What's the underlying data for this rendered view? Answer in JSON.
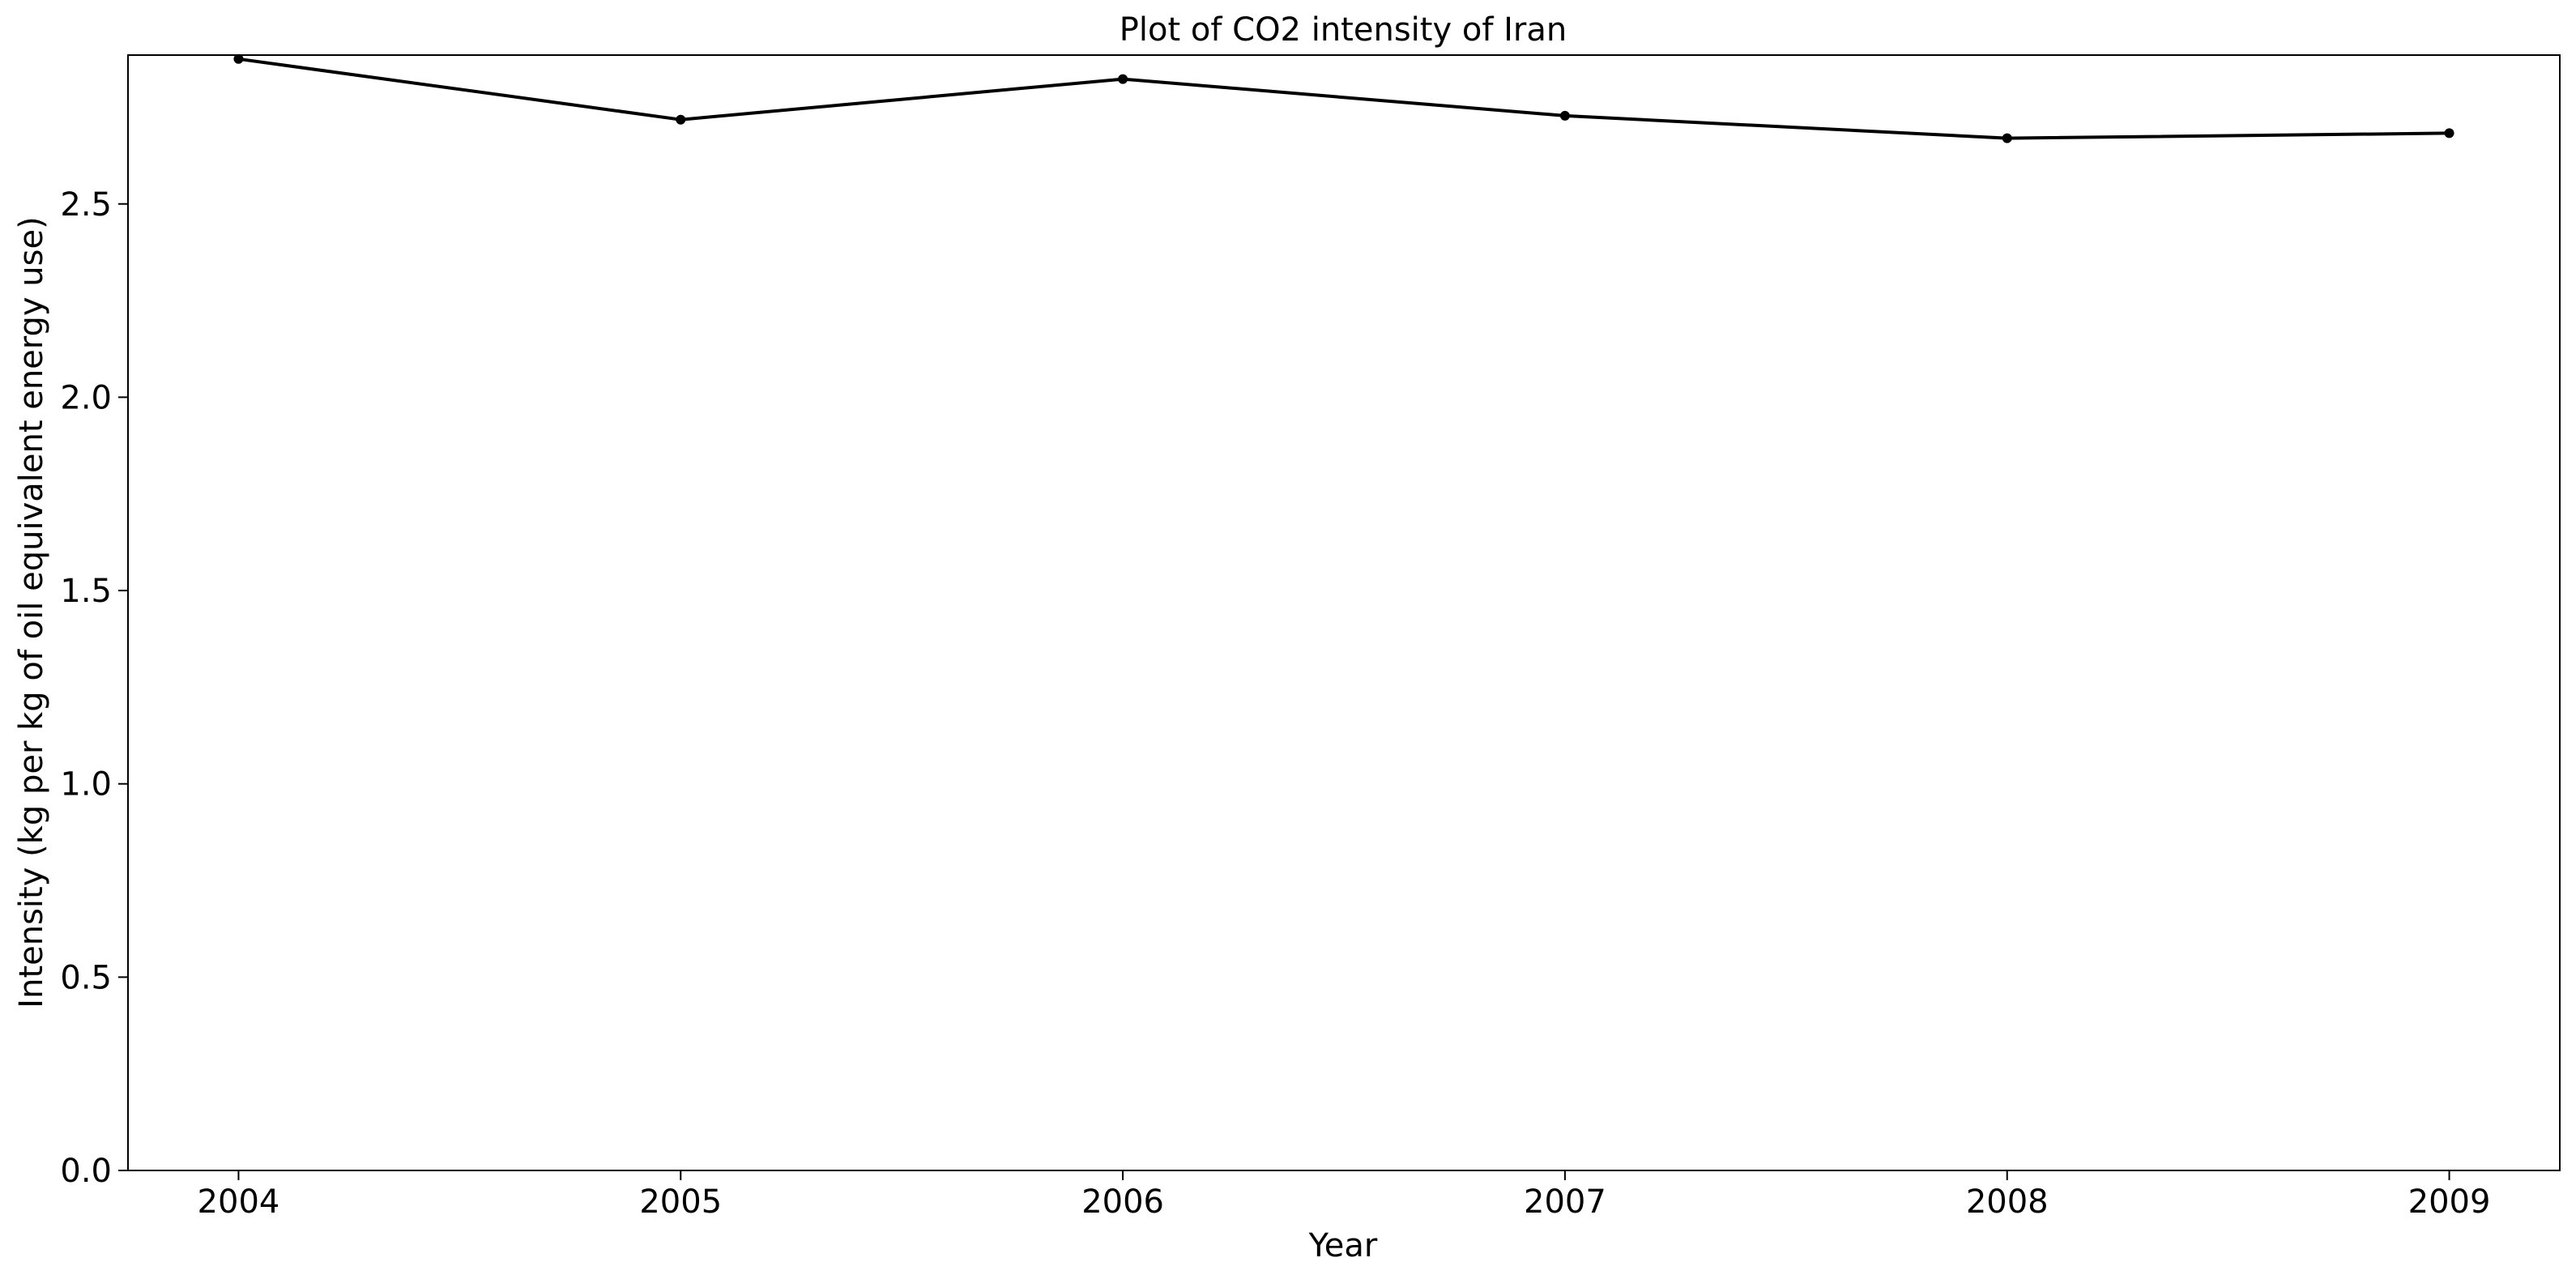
{
  "chart_data": {
    "type": "line",
    "title": "Plot of CO2 intensity of Iran",
    "xlabel": "Year",
    "ylabel": "Intensity (kg per kg of oil equivalent energy use)",
    "x": [
      2004,
      2005,
      2006,
      2007,
      2008,
      2009
    ],
    "series": [
      {
        "values": [
          2.875,
          2.718,
          2.823,
          2.728,
          2.67,
          2.683
        ],
        "color": "#000000",
        "marker": "dot"
      }
    ],
    "xlim": [
      2003.75,
      2009.25
    ],
    "ylim": [
      0.0,
      2.885
    ],
    "xticks": [
      "2004",
      "2005",
      "2006",
      "2007",
      "2008",
      "2009"
    ],
    "yticks": [
      "0.0",
      "0.5",
      "1.0",
      "1.5",
      "2.0",
      "2.5"
    ],
    "grid": false,
    "legend": "none"
  }
}
